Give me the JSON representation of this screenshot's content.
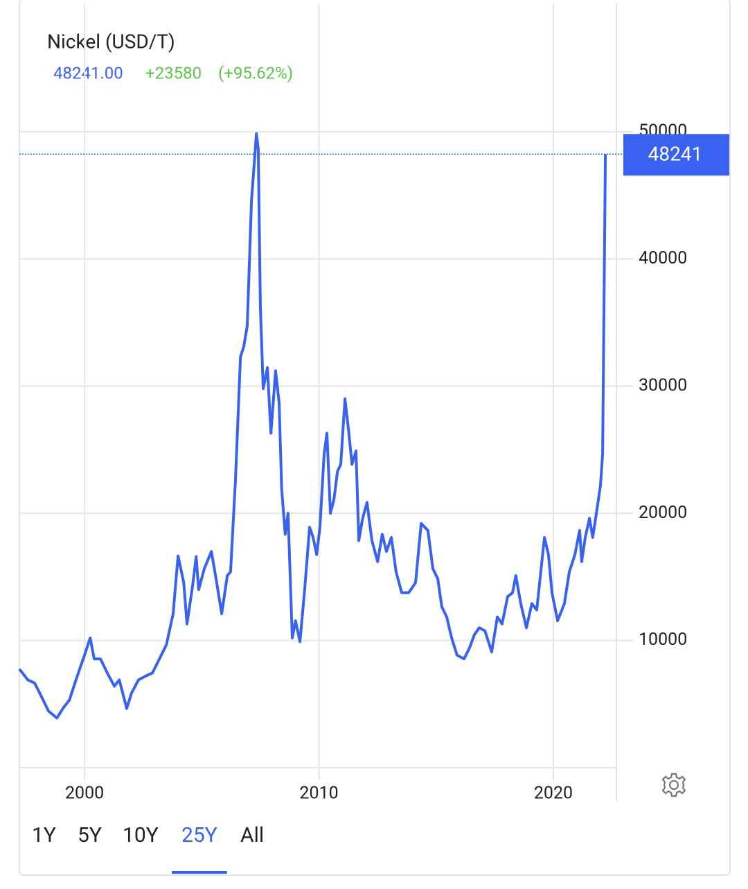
{
  "chart_data": {
    "type": "line",
    "title": "Nickel (USD/T)",
    "price": "48241.00",
    "change": "+23580",
    "change_pct": "(+95.62%)",
    "x": [
      1997.22,
      1997.58,
      1997.87,
      1998.17,
      1998.46,
      1998.82,
      1999.11,
      1999.35,
      1999.59,
      1999.79,
      2000.0,
      2000.24,
      2000.41,
      2000.68,
      2000.97,
      2001.27,
      2001.48,
      2001.8,
      2002.0,
      2002.3,
      2002.6,
      2002.9,
      2003.19,
      2003.49,
      2003.78,
      2003.99,
      2004.23,
      2004.37,
      2004.61,
      2004.76,
      2004.87,
      2005.11,
      2005.41,
      2005.61,
      2005.85,
      2006.09,
      2006.23,
      2006.44,
      2006.65,
      2006.79,
      2006.94,
      2007.12,
      2007.33,
      2007.41,
      2007.5,
      2007.62,
      2007.8,
      2007.95,
      2008.15,
      2008.3,
      2008.41,
      2008.56,
      2008.68,
      2008.86,
      2009.0,
      2009.19,
      2009.39,
      2009.6,
      2009.75,
      2009.9,
      2010.04,
      2010.22,
      2010.34,
      2010.49,
      2010.64,
      2010.79,
      2010.93,
      2011.11,
      2011.26,
      2011.41,
      2011.58,
      2011.7,
      2011.85,
      2012.05,
      2012.26,
      2012.5,
      2012.7,
      2012.88,
      2013.09,
      2013.29,
      2013.53,
      2013.83,
      2014.12,
      2014.36,
      2014.65,
      2014.86,
      2015.07,
      2015.24,
      2015.45,
      2015.66,
      2015.89,
      2016.19,
      2016.42,
      2016.63,
      2016.84,
      2017.08,
      2017.37,
      2017.61,
      2017.81,
      2018.05,
      2018.26,
      2018.4,
      2018.61,
      2018.85,
      2019.08,
      2019.29,
      2019.62,
      2019.79,
      2019.94,
      2020.18,
      2020.47,
      2020.68,
      2020.92,
      2021.12,
      2021.21,
      2021.36,
      2021.54,
      2021.68,
      2021.86,
      2022.01,
      2022.1,
      2022.22
    ],
    "series": [
      {
        "name": "Nickel",
        "color": "#3a62f0",
        "values": [
          7750,
          6900,
          6650,
          5550,
          4450,
          3900,
          4750,
          5300,
          6650,
          7750,
          8850,
          10200,
          8550,
          8550,
          7450,
          6400,
          6900,
          4650,
          5850,
          6900,
          7200,
          7450,
          8550,
          9650,
          12100,
          16650,
          14550,
          11300,
          14300,
          16600,
          14000,
          15650,
          17000,
          14850,
          12100,
          15100,
          15400,
          22750,
          32300,
          33100,
          34750,
          44550,
          49850,
          48650,
          36350,
          29800,
          31450,
          26300,
          31200,
          28700,
          21900,
          18350,
          20000,
          10200,
          11550,
          9900,
          14000,
          18900,
          18100,
          16750,
          18900,
          24650,
          26300,
          20000,
          21100,
          23300,
          23850,
          29000,
          26550,
          23850,
          24900,
          17850,
          19500,
          20850,
          17850,
          16200,
          18350,
          17000,
          18100,
          15400,
          13750,
          13750,
          14550,
          19200,
          18650,
          15650,
          14850,
          12650,
          11850,
          10200,
          8850,
          8550,
          9400,
          10450,
          11000,
          10750,
          9100,
          11850,
          11300,
          13450,
          13750,
          15100,
          12900,
          11000,
          12900,
          12400,
          18100,
          16750,
          13750,
          11550,
          12900,
          15400,
          16750,
          18650,
          16200,
          18100,
          19600,
          18100,
          20300,
          22200,
          24650,
          48241
        ]
      }
    ],
    "xlim": [
      1997.22,
      2022.63
    ],
    "xticks": [
      2000,
      2010,
      2020
    ],
    "ylim": [
      0,
      50000
    ],
    "yticks": [
      10000,
      20000,
      30000,
      40000,
      50000
    ],
    "grid": true,
    "range_buttons": [
      "1Y",
      "5Y",
      "10Y",
      "25Y",
      "All"
    ],
    "active_range": "25Y",
    "change_color": "#5cc44c",
    "text_color": "#222222"
  }
}
